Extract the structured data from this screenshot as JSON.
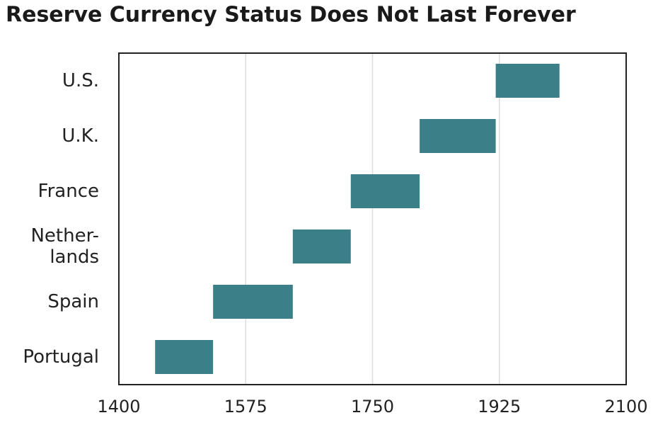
{
  "chart_data": {
    "type": "range-bar",
    "title": "Reserve Currency Status Does Not Last Forever",
    "categories": [
      "U.S.",
      "U.K.",
      "France",
      "Nether-\nlands",
      "Spain",
      "Portugal"
    ],
    "start": [
      1920,
      1815,
      1720,
      1640,
      1530,
      1450
    ],
    "end": [
      2008,
      1920,
      1815,
      1720,
      1640,
      1530
    ],
    "color": "#3b8088",
    "xlim": [
      1400,
      2100
    ],
    "xticks": [
      1400,
      1575,
      1750,
      1925,
      2100
    ],
    "grid": true
  }
}
